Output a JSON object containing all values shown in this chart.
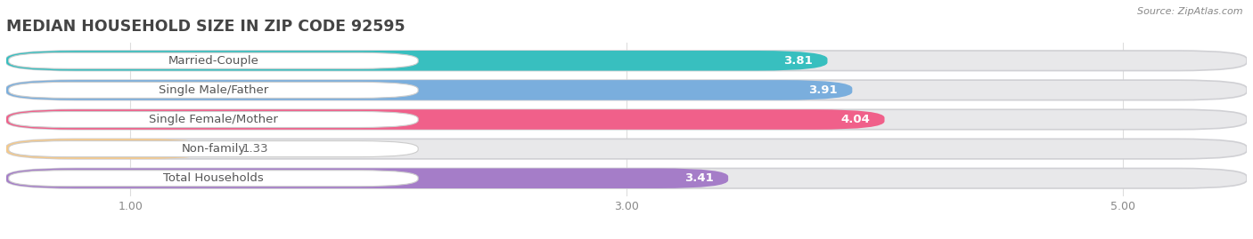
{
  "title": "MEDIAN HOUSEHOLD SIZE IN ZIP CODE 92595",
  "source": "Source: ZipAtlas.com",
  "categories": [
    "Married-Couple",
    "Single Male/Father",
    "Single Female/Mother",
    "Non-family",
    "Total Households"
  ],
  "values": [
    3.81,
    3.91,
    4.04,
    1.33,
    3.41
  ],
  "bar_colors": [
    "#38bfbf",
    "#7aaedd",
    "#f0608a",
    "#f5c98a",
    "#a57dc8"
  ],
  "xmin": 0.5,
  "xmax": 5.5,
  "xticks": [
    1.0,
    3.0,
    5.0
  ],
  "background_color": "#ffffff",
  "track_color": "#e8e8ea",
  "bar_height": 0.68,
  "title_fontsize": 12.5,
  "label_fontsize": 9.5,
  "value_fontsize": 9.5
}
